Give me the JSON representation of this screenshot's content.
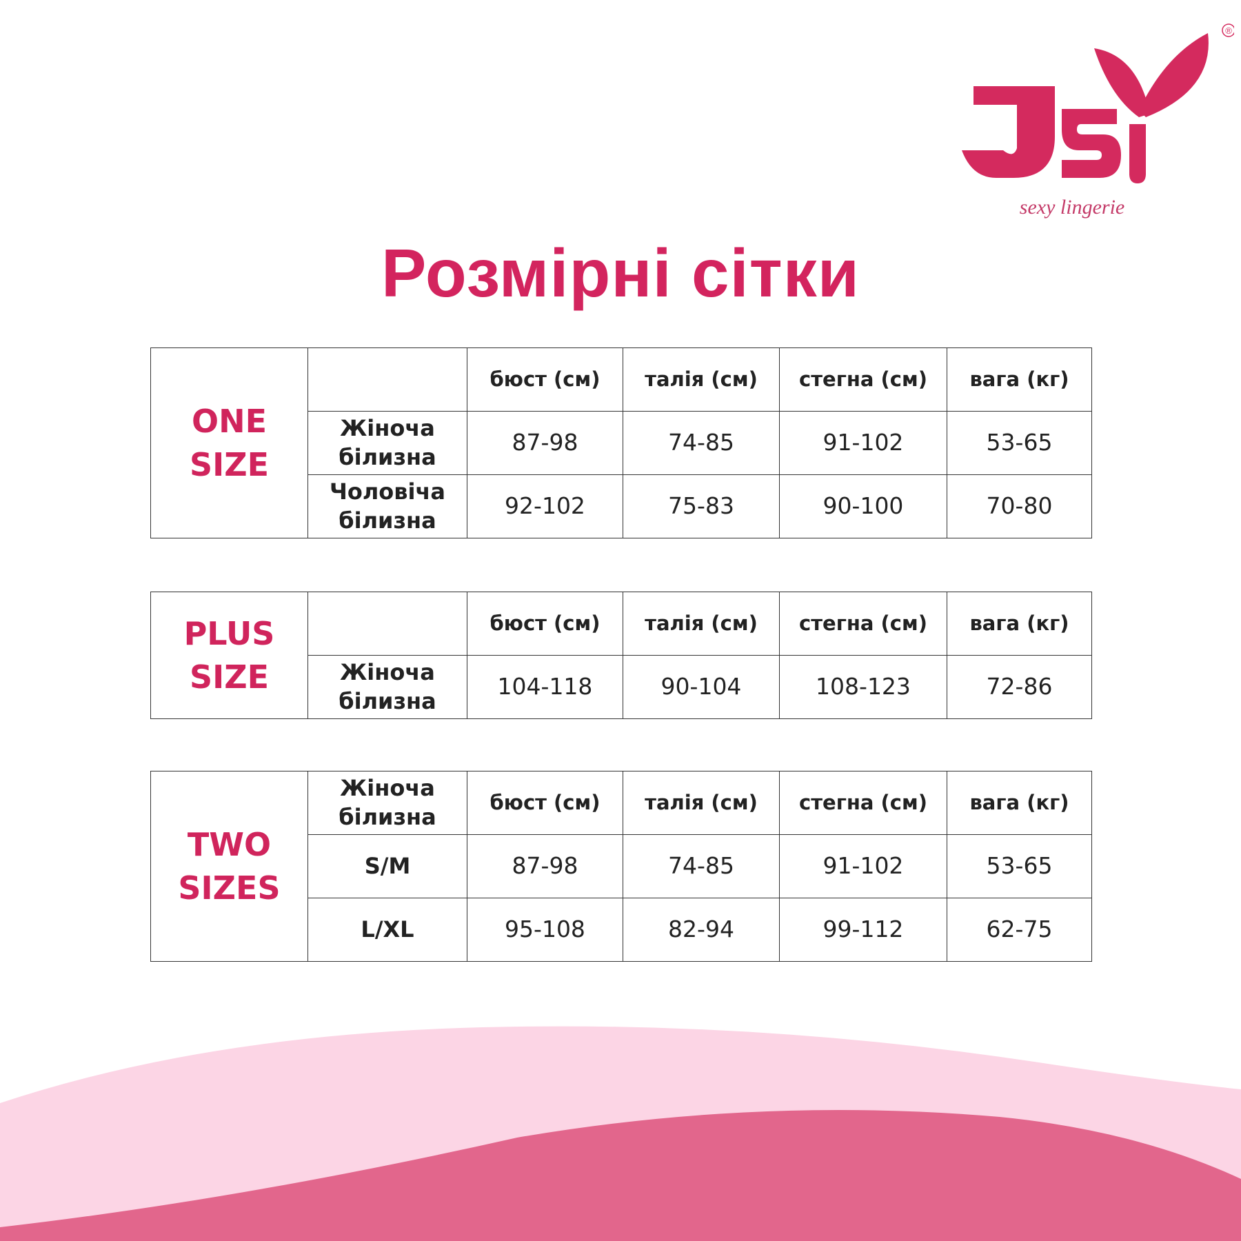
{
  "logo": {
    "text": "JSY",
    "tagline": "sexy lingerie",
    "registered": "®",
    "color": "#d42a5e"
  },
  "title": "Розмірні сітки",
  "colors": {
    "accent": "#d3245e",
    "wave_light": "#fcd5e5",
    "wave_dark": "#e2668c"
  },
  "headers": [
    "бюст (см)",
    "талія (см)",
    "стегна (см)",
    "вага (кг)"
  ],
  "tables": [
    {
      "group": [
        "ONE",
        "SIZE"
      ],
      "corner": "",
      "rows": [
        {
          "label": [
            "Жіноча",
            "білизна"
          ],
          "values": [
            "87-98",
            "74-85",
            "91-102",
            "53-65"
          ]
        },
        {
          "label": [
            "Чоловіча",
            "білизна"
          ],
          "values": [
            "92-102",
            "75-83",
            "90-100",
            "70-80"
          ]
        }
      ]
    },
    {
      "group": [
        "PLUS",
        "SIZE"
      ],
      "corner": "",
      "rows": [
        {
          "label": [
            "Жіноча",
            "білизна"
          ],
          "values": [
            "104-118",
            "90-104",
            "108-123",
            "72-86"
          ]
        }
      ]
    },
    {
      "group": [
        "TWO",
        "SIZES"
      ],
      "corner": [
        "Жіноча",
        "білизна"
      ],
      "rows": [
        {
          "label": [
            "S/M"
          ],
          "values": [
            "87-98",
            "74-85",
            "91-102",
            "53-65"
          ]
        },
        {
          "label": [
            "L/XL"
          ],
          "values": [
            "95-108",
            "82-94",
            "99-112",
            "62-75"
          ]
        }
      ]
    }
  ]
}
